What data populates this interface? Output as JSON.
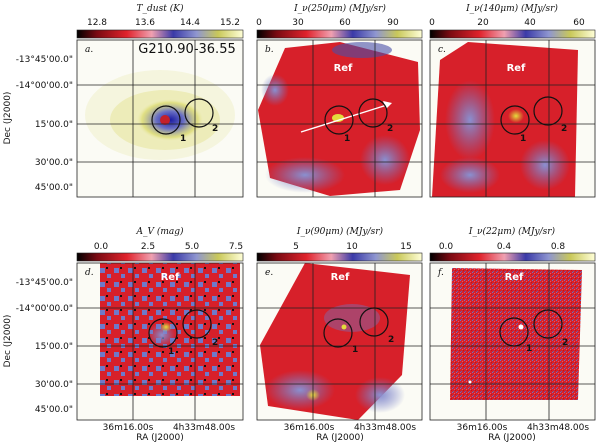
{
  "figure": {
    "field_name": "G210.90-36.55",
    "ref_label": "Ref",
    "source_labels": [
      "1",
      "2"
    ],
    "colors": {
      "red": "#d7202a",
      "blue": "#6f79c9",
      "yellow": "#d8d23a",
      "frame": "#222222"
    },
    "ylabel": "Dec (J2000)",
    "xlabel": "RA (J2000)",
    "dec_ticks": [
      "-13°45'00.0\"",
      "-14°00'00.0\"",
      "15'00.0\"",
      "30'00.0\"",
      "45'00.0\""
    ],
    "ra_ticks": [
      "36m16.00s",
      "4h33m48.00s"
    ],
    "panels": [
      {
        "letter": "a.",
        "colorbar_label": "T_dust (K)",
        "ticks": [
          "12.8",
          "13.6",
          "14.4",
          "15.2"
        ]
      },
      {
        "letter": "b.",
        "colorbar_label": "I_ν(250μm) (MJy/sr)",
        "ticks": [
          "0",
          "30",
          "60",
          "90"
        ]
      },
      {
        "letter": "c.",
        "colorbar_label": "I_ν(140μm) (MJy/sr)",
        "ticks": [
          "0",
          "20",
          "40",
          "60"
        ]
      },
      {
        "letter": "d.",
        "colorbar_label": "A_V (mag)",
        "ticks": [
          "0.0",
          "2.5",
          "5.0",
          "7.5"
        ]
      },
      {
        "letter": "e.",
        "colorbar_label": "I_ν(90μm) (MJy/sr)",
        "ticks": [
          "5",
          "10",
          "15"
        ]
      },
      {
        "letter": "f.",
        "colorbar_label": "I_ν(22μm) (MJy/sr)",
        "ticks": [
          "0.0",
          "0.4",
          "0.8"
        ]
      }
    ]
  }
}
